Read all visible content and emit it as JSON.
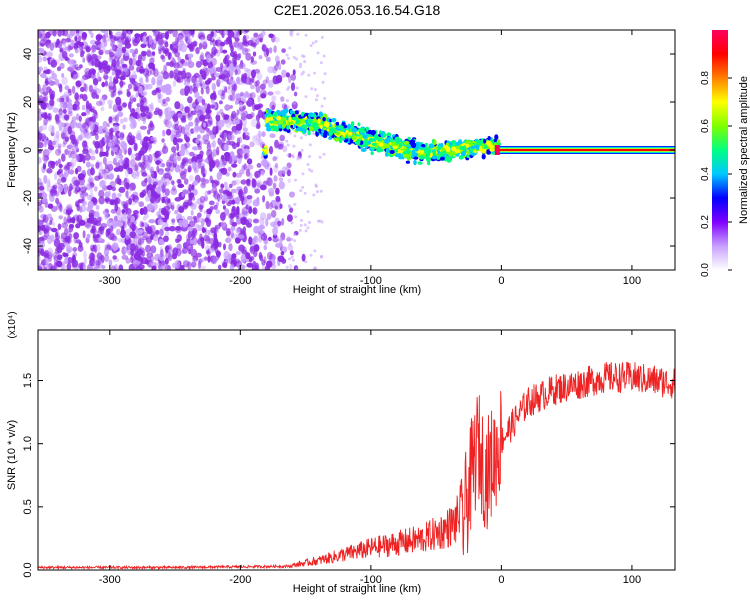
{
  "figure": {
    "title": "C2E1.2026.053.16.54.G18"
  },
  "chart_data": [
    {
      "type": "heatmap",
      "xlabel": "Height of straight line (km)",
      "ylabel": "Frequency (Hz)",
      "xlim": [
        -355,
        133
      ],
      "ylim": [
        -50,
        50
      ],
      "xticks": [
        -300,
        -200,
        -100,
        0,
        100
      ],
      "yticks": [
        -40,
        -20,
        0,
        20,
        40
      ],
      "grid": false,
      "colorbar": {
        "label": "Normalized spectral amplitude",
        "range": [
          0,
          1
        ],
        "ticks": [
          "0.0",
          "0.2",
          "0.4",
          "0.6",
          "0.8"
        ],
        "colors": [
          "#ffffff",
          "#c8a0ff",
          "#7f00ff",
          "#0000ff",
          "#00c8ff",
          "#00ff80",
          "#80ff00",
          "#ffff00",
          "#ff8000",
          "#ff0000",
          "#ff0060"
        ]
      },
      "trend": {
        "description_points_x": [
          -180,
          -160,
          -140,
          -120,
          -100,
          -80,
          -60,
          -40,
          -20,
          -5,
          0,
          40,
          80,
          133
        ],
        "description_points_y": [
          12,
          12,
          11,
          7,
          4,
          1,
          -1,
          0,
          1,
          2,
          0,
          0,
          0,
          0
        ]
      }
    },
    {
      "type": "line",
      "xlabel": "Height of straight line (km)",
      "ylabel": "SNR (10 * v/v)",
      "scale_label": "(x10⁴)",
      "xlim": [
        -355,
        133
      ],
      "ylim": [
        0,
        1.9
      ],
      "xticks": [
        -300,
        -200,
        -100,
        0,
        100
      ],
      "yticks": [
        "0.0",
        "0.5",
        "1.0",
        "1.5"
      ],
      "grid": false,
      "series": [
        {
          "color": "#ee2222",
          "x": [
            -355,
            -250,
            -160,
            -140,
            -120,
            -100,
            -80,
            -60,
            -45,
            -35,
            -28,
            -22,
            -18,
            -12,
            -5,
            0,
            10,
            20,
            40,
            60,
            80,
            100,
            120,
            133
          ],
          "y": [
            0.02,
            0.02,
            0.03,
            0.06,
            0.1,
            0.14,
            0.17,
            0.2,
            0.25,
            0.3,
            0.45,
            0.8,
            1.0,
            0.75,
            0.9,
            1.05,
            1.2,
            1.35,
            1.45,
            1.5,
            1.55,
            1.55,
            1.52,
            1.5
          ]
        }
      ]
    }
  ]
}
